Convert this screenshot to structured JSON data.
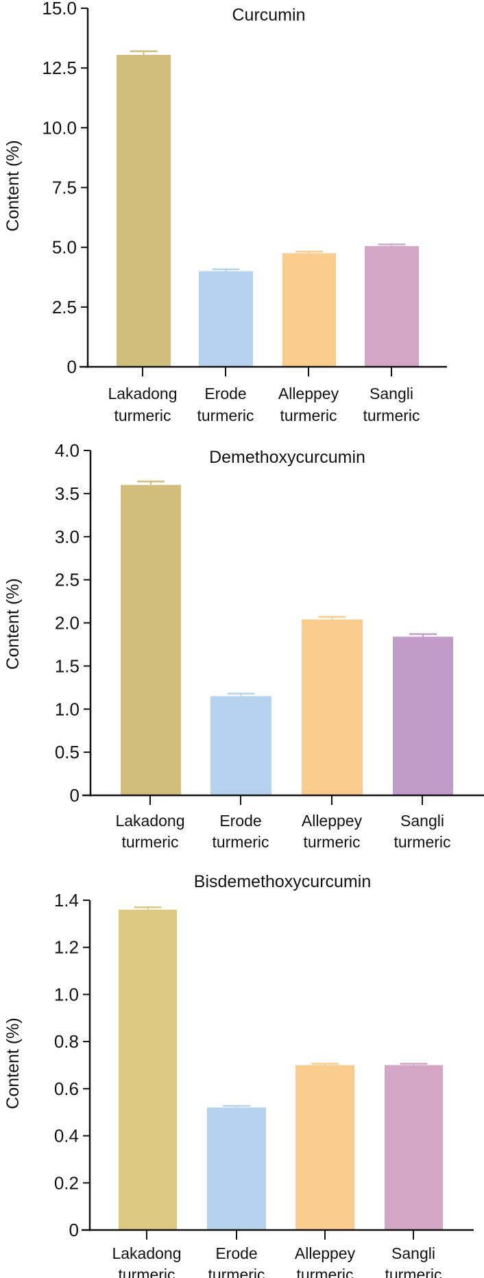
{
  "chart_data": [
    {
      "type": "bar",
      "title": "Curcumin",
      "ylabel": "Content (%)",
      "xlabel": "",
      "categories": [
        [
          "Lakadong",
          "turmeric"
        ],
        [
          "Erode",
          "turmeric"
        ],
        [
          "Alleppey",
          "turmeric"
        ],
        [
          "Sangli",
          "turmeric"
        ]
      ],
      "values": [
        13.05,
        4.0,
        4.75,
        5.05
      ],
      "error_upper": [
        13.2,
        4.08,
        4.82,
        5.12
      ],
      "ylim": [
        0,
        15
      ],
      "yticks": [
        "0",
        "2.5",
        "5.0",
        "7.5",
        "10.0",
        "12.5",
        "15.0"
      ],
      "ytick_values": [
        0,
        2.5,
        5,
        7.5,
        10,
        12.5,
        15
      ],
      "colors": [
        "#d1bd7c",
        "#b5d3ef",
        "#f9cb8c",
        "#d3a6c6"
      ],
      "grid": false
    },
    {
      "type": "bar",
      "title": "Demethoxycurcumin",
      "ylabel": "Content (%)",
      "xlabel": "",
      "categories": [
        [
          "Lakadong",
          "turmeric"
        ],
        [
          "Erode",
          "turmeric"
        ],
        [
          "Alleppey",
          "turmeric"
        ],
        [
          "Sangli",
          "turmeric"
        ]
      ],
      "values": [
        3.6,
        1.15,
        2.04,
        1.84
      ],
      "error_upper": [
        3.64,
        1.18,
        2.07,
        1.87
      ],
      "ylim": [
        0,
        4
      ],
      "yticks": [
        "0",
        "0.5",
        "1.0",
        "1.5",
        "2.0",
        "2.5",
        "3.0",
        "3.5",
        "4.0"
      ],
      "ytick_values": [
        0,
        0.5,
        1,
        1.5,
        2,
        2.5,
        3,
        3.5,
        4
      ],
      "colors": [
        "#d1bd7c",
        "#b5d3ef",
        "#f9cb8c",
        "#c19cc8"
      ],
      "grid": false
    },
    {
      "type": "bar",
      "title": "Bisdemethoxycurcumin",
      "ylabel": "Content (%)",
      "xlabel": "",
      "categories": [
        [
          "Lakadong",
          "turmeric"
        ],
        [
          "Erode",
          "turmeric"
        ],
        [
          "Alleppey",
          "turmeric"
        ],
        [
          "Sangli",
          "turmeric"
        ]
      ],
      "values": [
        1.36,
        0.52,
        0.7,
        0.7
      ],
      "error_upper": [
        1.37,
        0.527,
        0.706,
        0.706
      ],
      "ylim": [
        0,
        1.4
      ],
      "yticks": [
        "0",
        "0.2",
        "0.4",
        "0.6",
        "0.8",
        "1.0",
        "1.2",
        "1.4"
      ],
      "ytick_values": [
        0,
        0.2,
        0.4,
        0.6,
        0.8,
        1.0,
        1.2,
        1.4
      ],
      "colors": [
        "#dcc880",
        "#b5d3ef",
        "#f9cb8c",
        "#d3a6c6"
      ],
      "grid": false
    }
  ]
}
